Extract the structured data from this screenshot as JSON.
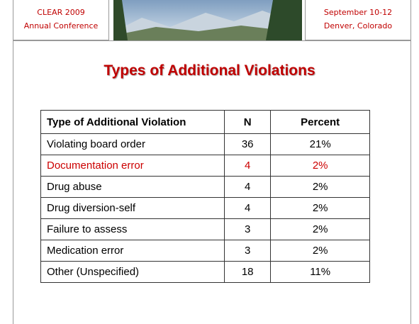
{
  "header": {
    "left": [
      "CLEAR 2009",
      "Annual Conference"
    ],
    "right": [
      "September 10-12",
      "Denver, Colorado"
    ]
  },
  "title": "Types of Additional Violations",
  "table": {
    "columns": [
      "Type of Additional Violation",
      "N",
      "Percent"
    ],
    "rows": [
      [
        "Violating board order",
        36,
        "21%"
      ],
      [
        "Documentation error",
        4,
        "2%"
      ],
      [
        "Drug abuse",
        4,
        "2%"
      ],
      [
        "Drug diversion-self",
        4,
        "2%"
      ],
      [
        "Failure to assess",
        3,
        "2%"
      ],
      [
        "Medication error",
        3,
        "2%"
      ],
      [
        "Other (Unspecified)",
        18,
        "11%"
      ]
    ],
    "highlight_row": 1,
    "highlight_color": "#cc0000"
  }
}
